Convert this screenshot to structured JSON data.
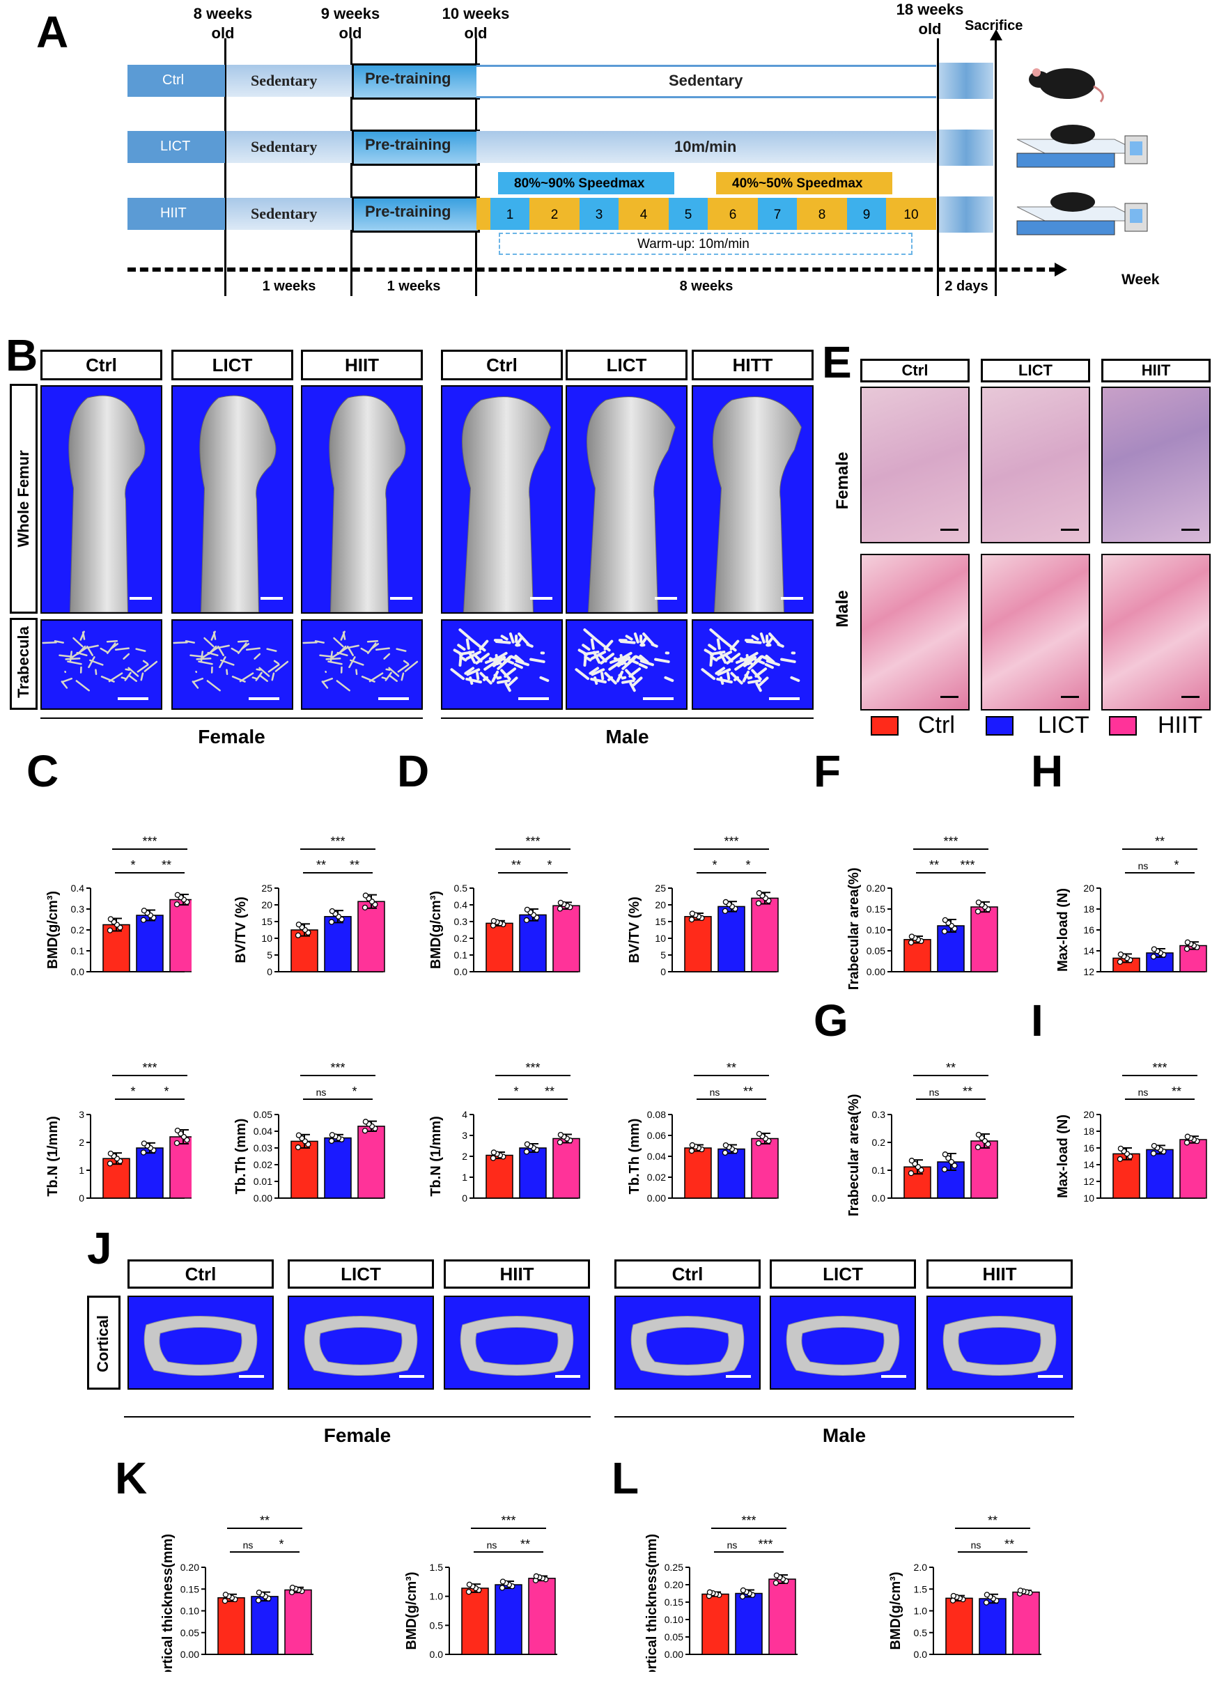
{
  "panel_letters": {
    "A": "A",
    "B": "B",
    "C": "C",
    "D": "D",
    "E": "E",
    "F": "F",
    "G": "G",
    "H": "H",
    "I": "I",
    "J": "J",
    "K": "K",
    "L": "L"
  },
  "timeline": {
    "times": [
      {
        "line1": "8 weeks",
        "line2": "old"
      },
      {
        "line1": "9 weeks",
        "line2": "old"
      },
      {
        "line1": "10 weeks",
        "line2": "old"
      },
      {
        "line1": "18 weeks",
        "line2": "old"
      }
    ],
    "sacrifice": "Sacrifice",
    "groups": [
      "Ctrl",
      "LICT",
      "HIIT"
    ],
    "sedentary": "Sedentary",
    "pretraining": "Pre-training",
    "ctrl_main": "Sedentary",
    "lict_main": "10m/min",
    "hiit_high": "80%~90% Speedmax",
    "hiit_low": "40%~50% Speedmax",
    "hiit_numbers": [
      "1",
      "2",
      "3",
      "4",
      "5",
      "6",
      "7",
      "8",
      "9",
      "10"
    ],
    "warmup": "Warm-up: 10m/min",
    "durations": [
      "1 weeks",
      "1 weeks",
      "8 weeks",
      "2 days"
    ],
    "axis_label": "Week"
  },
  "microct": {
    "headers_female": [
      "Ctrl",
      "LICT",
      "HIIT"
    ],
    "headers_male": [
      "Ctrl",
      "LICT",
      "HITT"
    ],
    "row_whole": "Whole Femur",
    "row_trab": "Trabecula",
    "female": "Female",
    "male": "Male"
  },
  "histology": {
    "headers": [
      "Ctrl",
      "LICT",
      "HIIT"
    ],
    "rows": [
      "Female",
      "Male"
    ]
  },
  "legend": {
    "items": [
      {
        "label": "Ctrl",
        "color": "#ff2a1a"
      },
      {
        "label": "LICT",
        "color": "#1a1aff"
      },
      {
        "label": "HIIT",
        "color": "#ff3399"
      }
    ]
  },
  "cortical": {
    "row_label": "Cortical",
    "headers_female": [
      "Ctrl",
      "LICT",
      "HIIT"
    ],
    "headers_male": [
      "Ctrl",
      "LICT",
      "HIIT"
    ],
    "female": "Female",
    "male": "Male"
  },
  "chart_data": [
    {
      "id": "C1",
      "type": "bar",
      "ylabel": "BMD(g/cm³)",
      "ylim": [
        0,
        0.4
      ],
      "yticks": [
        "0.0",
        "0.1",
        "0.2",
        "0.3",
        "0.4"
      ],
      "categories": [
        "Ctrl",
        "LICT",
        "HIIT"
      ],
      "values": [
        0.225,
        0.27,
        0.345
      ],
      "errors": [
        0.03,
        0.025,
        0.025
      ],
      "sig": [
        {
          "a": 0,
          "b": 1,
          "t": "*"
        },
        {
          "a": 1,
          "b": 2,
          "t": "**"
        },
        {
          "a": 0,
          "b": 2,
          "t": "***"
        }
      ]
    },
    {
      "id": "C2",
      "type": "bar",
      "ylabel": "BV/TV (%)",
      "ylim": [
        0,
        25
      ],
      "yticks": [
        "0",
        "5",
        "10",
        "15",
        "20",
        "25"
      ],
      "categories": [
        "Ctrl",
        "LICT",
        "HIIT"
      ],
      "values": [
        12.5,
        16.5,
        21
      ],
      "errors": [
        1.8,
        1.8,
        2
      ],
      "sig": [
        {
          "a": 0,
          "b": 1,
          "t": "**"
        },
        {
          "a": 1,
          "b": 2,
          "t": "**"
        },
        {
          "a": 0,
          "b": 2,
          "t": "***"
        }
      ]
    },
    {
      "id": "C3",
      "type": "bar",
      "ylabel": "Tb.N (1/mm)",
      "ylim": [
        0,
        3
      ],
      "yticks": [
        "0",
        "1",
        "2",
        "3"
      ],
      "categories": [
        "Ctrl",
        "LICT",
        "HIIT"
      ],
      "values": [
        1.42,
        1.8,
        2.2
      ],
      "errors": [
        0.2,
        0.18,
        0.25
      ],
      "sig": [
        {
          "a": 0,
          "b": 1,
          "t": "*"
        },
        {
          "a": 1,
          "b": 2,
          "t": "*"
        },
        {
          "a": 0,
          "b": 2,
          "t": "***"
        }
      ]
    },
    {
      "id": "C4",
      "type": "bar",
      "ylabel": "Tb.Th (mm)",
      "ylim": [
        0,
        0.05
      ],
      "yticks": [
        "0.00",
        "0.01",
        "0.02",
        "0.03",
        "0.04",
        "0.05"
      ],
      "categories": [
        "Ctrl",
        "LICT",
        "HIIT"
      ],
      "values": [
        0.034,
        0.036,
        0.043
      ],
      "errors": [
        0.004,
        0.002,
        0.003
      ],
      "sig": [
        {
          "a": 0,
          "b": 1,
          "t": "ns"
        },
        {
          "a": 1,
          "b": 2,
          "t": "*"
        },
        {
          "a": 0,
          "b": 2,
          "t": "***"
        }
      ]
    },
    {
      "id": "D1",
      "type": "bar",
      "ylabel": "BMD(g/cm³)",
      "ylim": [
        0,
        0.5
      ],
      "yticks": [
        "0.0",
        "0.1",
        "0.2",
        "0.3",
        "0.4",
        "0.5"
      ],
      "categories": [
        "Ctrl",
        "LICT",
        "HIIT"
      ],
      "values": [
        0.29,
        0.34,
        0.395
      ],
      "errors": [
        0.015,
        0.035,
        0.02
      ],
      "sig": [
        {
          "a": 0,
          "b": 1,
          "t": "**"
        },
        {
          "a": 1,
          "b": 2,
          "t": "*"
        },
        {
          "a": 0,
          "b": 2,
          "t": "***"
        }
      ]
    },
    {
      "id": "D2",
      "type": "bar",
      "ylabel": "BV/TV (%)",
      "ylim": [
        0,
        25
      ],
      "yticks": [
        "0",
        "5",
        "10",
        "15",
        "20",
        "25"
      ],
      "categories": [
        "Ctrl",
        "LICT",
        "HIIT"
      ],
      "values": [
        16.5,
        19.5,
        22
      ],
      "errors": [
        1,
        1.5,
        1.7
      ],
      "sig": [
        {
          "a": 0,
          "b": 1,
          "t": "*"
        },
        {
          "a": 1,
          "b": 2,
          "t": "*"
        },
        {
          "a": 0,
          "b": 2,
          "t": "***"
        }
      ]
    },
    {
      "id": "D3",
      "type": "bar",
      "ylabel": "Tb.N (1/mm)",
      "ylim": [
        0,
        4
      ],
      "yticks": [
        "0",
        "1",
        "2",
        "3",
        "4"
      ],
      "categories": [
        "Ctrl",
        "LICT",
        "HIIT"
      ],
      "values": [
        2.05,
        2.4,
        2.85
      ],
      "errors": [
        0.15,
        0.2,
        0.2
      ],
      "sig": [
        {
          "a": 0,
          "b": 1,
          "t": "*"
        },
        {
          "a": 1,
          "b": 2,
          "t": "**"
        },
        {
          "a": 0,
          "b": 2,
          "t": "***"
        }
      ]
    },
    {
      "id": "D4",
      "type": "bar",
      "ylabel": "Tb.Th (mm)",
      "ylim": [
        0,
        0.08
      ],
      "yticks": [
        "0.00",
        "0.02",
        "0.04",
        "0.06",
        "0.08"
      ],
      "categories": [
        "Ctrl",
        "LICT",
        "HIIT"
      ],
      "values": [
        0.048,
        0.047,
        0.057
      ],
      "errors": [
        0.003,
        0.004,
        0.005
      ],
      "sig": [
        {
          "a": 0,
          "b": 1,
          "t": "ns"
        },
        {
          "a": 1,
          "b": 2,
          "t": "**"
        },
        {
          "a": 0,
          "b": 2,
          "t": "**"
        }
      ]
    },
    {
      "id": "F",
      "type": "bar",
      "ylabel": "Trabecular area(%)",
      "ylim": [
        0,
        0.2
      ],
      "yticks": [
        "0.00",
        "0.05",
        "0.10",
        "0.15",
        "0.20"
      ],
      "categories": [
        "Ctrl",
        "LICT",
        "HIIT"
      ],
      "values": [
        0.077,
        0.11,
        0.155
      ],
      "errors": [
        0.008,
        0.015,
        0.012
      ],
      "sig": [
        {
          "a": 0,
          "b": 1,
          "t": "**"
        },
        {
          "a": 1,
          "b": 2,
          "t": "***"
        },
        {
          "a": 0,
          "b": 2,
          "t": "***"
        }
      ]
    },
    {
      "id": "G",
      "type": "bar",
      "ylabel": "Trabecular area(%)",
      "ylim": [
        0,
        0.3
      ],
      "yticks": [
        "0.0",
        "0.1",
        "0.2",
        "0.3"
      ],
      "categories": [
        "Ctrl",
        "LICT",
        "HIIT"
      ],
      "values": [
        0.112,
        0.13,
        0.205
      ],
      "errors": [
        0.025,
        0.03,
        0.025
      ],
      "sig": [
        {
          "a": 0,
          "b": 1,
          "t": "ns"
        },
        {
          "a": 1,
          "b": 2,
          "t": "**"
        },
        {
          "a": 0,
          "b": 2,
          "t": "**"
        }
      ]
    },
    {
      "id": "H",
      "type": "bar",
      "ylabel": "Max-load (N)",
      "ylim": [
        12,
        20
      ],
      "yticks": [
        "12",
        "14",
        "16",
        "18",
        "20"
      ],
      "categories": [
        "Ctrl",
        "LICT",
        "HIIT"
      ],
      "values": [
        13.3,
        13.8,
        14.5
      ],
      "errors": [
        0.4,
        0.4,
        0.35
      ],
      "sig": [
        {
          "a": 0,
          "b": 1,
          "t": "ns"
        },
        {
          "a": 1,
          "b": 2,
          "t": "*"
        },
        {
          "a": 0,
          "b": 2,
          "t": "**"
        }
      ]
    },
    {
      "id": "I",
      "type": "bar",
      "ylabel": "Max-load (N)",
      "ylim": [
        10,
        20
      ],
      "yticks": [
        "10",
        "12",
        "14",
        "16",
        "18",
        "20"
      ],
      "categories": [
        "Ctrl",
        "LICT",
        "HIIT"
      ],
      "values": [
        15.3,
        15.8,
        17
      ],
      "errors": [
        0.7,
        0.5,
        0.4
      ],
      "sig": [
        {
          "a": 0,
          "b": 1,
          "t": "ns"
        },
        {
          "a": 1,
          "b": 2,
          "t": "**"
        },
        {
          "a": 0,
          "b": 2,
          "t": "***"
        }
      ]
    },
    {
      "id": "K1",
      "type": "bar",
      "ylabel": "Cortical thickness(mm)",
      "ylim": [
        0,
        0.2
      ],
      "yticks": [
        "0.00",
        "0.05",
        "0.10",
        "0.15",
        "0.20"
      ],
      "categories": [
        "Ctrl",
        "LICT",
        "HIIT"
      ],
      "values": [
        0.13,
        0.133,
        0.148
      ],
      "errors": [
        0.008,
        0.01,
        0.006
      ],
      "sig": [
        {
          "a": 0,
          "b": 1,
          "t": "ns"
        },
        {
          "a": 1,
          "b": 2,
          "t": "*"
        },
        {
          "a": 0,
          "b": 2,
          "t": "**"
        }
      ]
    },
    {
      "id": "K2",
      "type": "bar",
      "ylabel": "BMD(g/cm³)",
      "ylim": [
        0,
        1.5
      ],
      "yticks": [
        "0.0",
        "0.5",
        "1.0",
        "1.5"
      ],
      "categories": [
        "Ctrl",
        "LICT",
        "HIIT"
      ],
      "values": [
        1.14,
        1.2,
        1.31
      ],
      "errors": [
        0.07,
        0.06,
        0.04
      ],
      "sig": [
        {
          "a": 0,
          "b": 1,
          "t": "ns"
        },
        {
          "a": 1,
          "b": 2,
          "t": "**"
        },
        {
          "a": 0,
          "b": 2,
          "t": "***"
        }
      ]
    },
    {
      "id": "L1",
      "type": "bar",
      "ylabel": "Cortical thickness(mm)",
      "ylim": [
        0,
        0.25
      ],
      "yticks": [
        "0.00",
        "0.05",
        "0.10",
        "0.15",
        "0.20",
        "0.25"
      ],
      "categories": [
        "Ctrl",
        "LICT",
        "HIIT"
      ],
      "values": [
        0.173,
        0.175,
        0.216
      ],
      "errors": [
        0.006,
        0.01,
        0.012
      ],
      "sig": [
        {
          "a": 0,
          "b": 1,
          "t": "ns"
        },
        {
          "a": 1,
          "b": 2,
          "t": "***"
        },
        {
          "a": 0,
          "b": 2,
          "t": "***"
        }
      ]
    },
    {
      "id": "L2",
      "type": "bar",
      "ylabel": "BMD(g/cm³)",
      "ylim": [
        0,
        2.0
      ],
      "yticks": [
        "0.0",
        "0.5",
        "1.0",
        "1.5",
        "2.0"
      ],
      "categories": [
        "Ctrl",
        "LICT",
        "HIIT"
      ],
      "values": [
        1.29,
        1.28,
        1.43
      ],
      "errors": [
        0.06,
        0.1,
        0.04
      ],
      "sig": [
        {
          "a": 0,
          "b": 1,
          "t": "ns"
        },
        {
          "a": 1,
          "b": 2,
          "t": "**"
        },
        {
          "a": 0,
          "b": 2,
          "t": "**"
        }
      ]
    }
  ]
}
